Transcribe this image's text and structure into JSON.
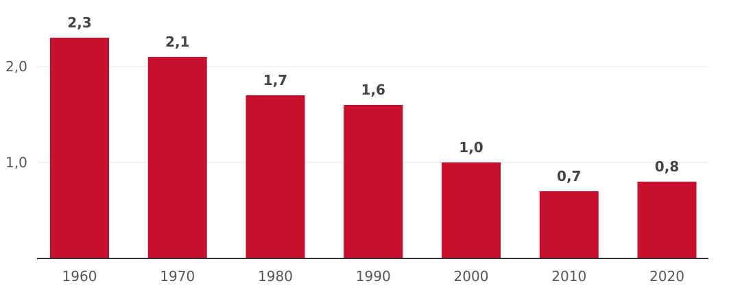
{
  "chart_data": {
    "type": "bar",
    "title": "",
    "xlabel": "",
    "ylabel": "",
    "categories": [
      "1960",
      "1970",
      "1980",
      "1990",
      "2000",
      "2010",
      "2020"
    ],
    "values": [
      2.3,
      2.1,
      1.7,
      1.6,
      1.0,
      0.7,
      0.8
    ],
    "value_labels": [
      "2,3",
      "2,1",
      "1,7",
      "1,6",
      "1,0",
      "0,7",
      "0,8"
    ],
    "yticks": [
      {
        "value": 1.0,
        "label": "1,0"
      },
      {
        "value": 2.0,
        "label": "2,0"
      }
    ],
    "ylim": [
      0,
      2.3
    ],
    "grid": true,
    "bar_color": "#c8102e"
  }
}
